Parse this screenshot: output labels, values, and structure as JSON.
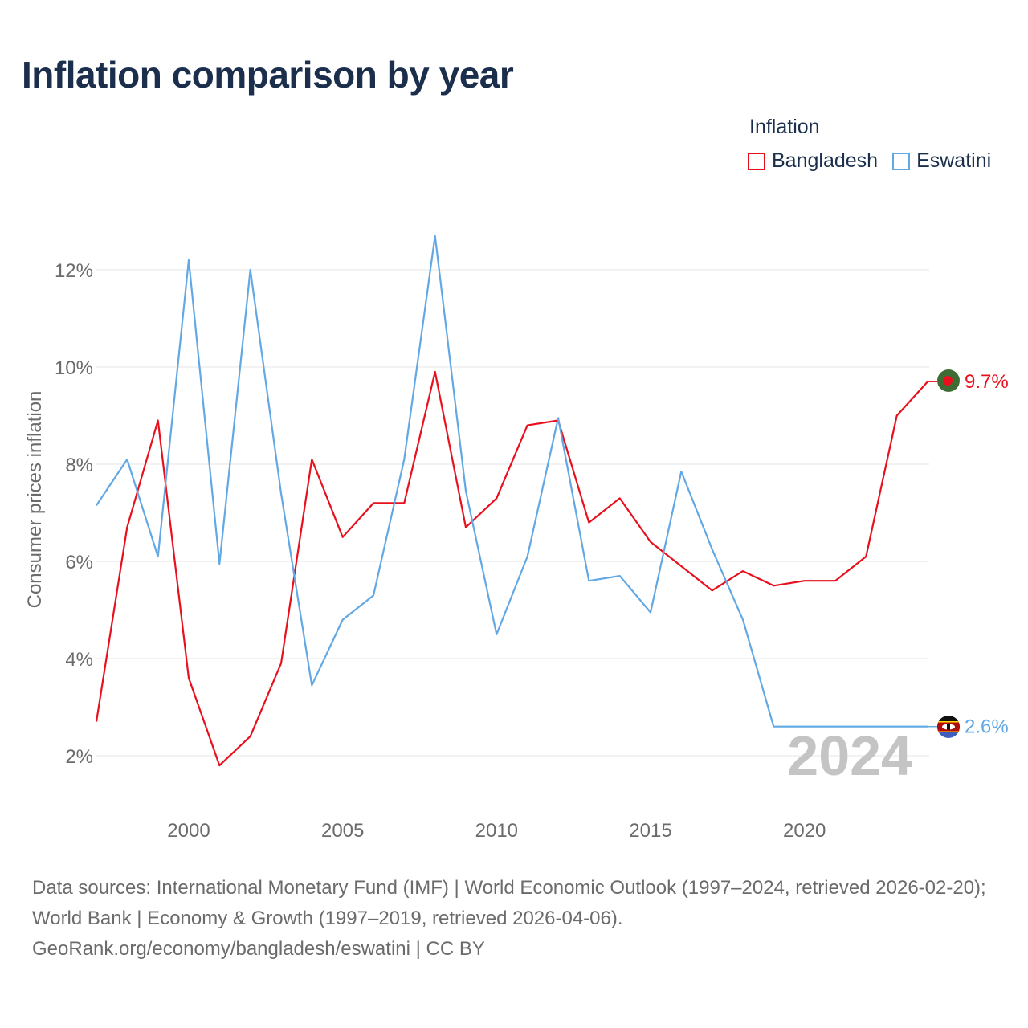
{
  "title": "Inflation comparison by year",
  "legend": {
    "title": "Inflation",
    "items": [
      {
        "label": "Bangladesh",
        "color": "#e8101d"
      },
      {
        "label": "Eswatini",
        "color": "#62a8e4"
      }
    ]
  },
  "year_watermark": "2024",
  "source": {
    "line1": "Data sources: International Monetary Fund (IMF) | World Economic Outlook (1997–2024, retrieved 2026-02-20); World Bank | Economy & Growth (1997–2019, retrieved 2026-04-06).",
    "line2": "GeoRank.org/economy/bangladesh/eswatini | CC BY"
  },
  "chart_data": {
    "type": "line",
    "title": "Inflation comparison by year",
    "xlabel": "",
    "ylabel": "Consumer prices inflation",
    "xlim": [
      1997,
      2024
    ],
    "ylim": [
      1,
      13.5
    ],
    "x_ticks": [
      2000,
      2005,
      2010,
      2015,
      2020
    ],
    "y_ticks": [
      2,
      4,
      6,
      8,
      10,
      12
    ],
    "y_tick_labels": [
      "2%",
      "4%",
      "6%",
      "8%",
      "10%",
      "12%"
    ],
    "grid": true,
    "legend_position": "top-right",
    "x": [
      1997,
      1998,
      1999,
      2000,
      2001,
      2002,
      2003,
      2004,
      2005,
      2006,
      2007,
      2008,
      2009,
      2010,
      2011,
      2012,
      2013,
      2014,
      2015,
      2016,
      2017,
      2018,
      2019,
      2020,
      2021,
      2022,
      2023,
      2024
    ],
    "series": [
      {
        "name": "Bangladesh",
        "color": "#e8101d",
        "end_label": "9.7%",
        "values": [
          2.7,
          6.7,
          8.9,
          3.6,
          1.8,
          2.4,
          3.9,
          8.1,
          6.5,
          7.2,
          7.2,
          9.9,
          6.7,
          7.3,
          8.8,
          8.9,
          6.8,
          7.3,
          6.4,
          5.9,
          5.4,
          5.8,
          5.5,
          5.6,
          5.6,
          6.1,
          9.0,
          9.7
        ]
      },
      {
        "name": "Eswatini",
        "color": "#62a8e4",
        "end_label": "2.6%",
        "values": [
          7.15,
          8.1,
          6.1,
          12.2,
          5.95,
          12.0,
          7.4,
          3.45,
          4.8,
          5.3,
          8.1,
          12.7,
          7.45,
          4.5,
          6.1,
          8.95,
          5.6,
          5.7,
          4.95,
          7.85,
          6.25,
          4.8,
          2.6,
          2.6,
          2.6,
          2.6,
          2.6,
          2.6
        ]
      }
    ]
  }
}
